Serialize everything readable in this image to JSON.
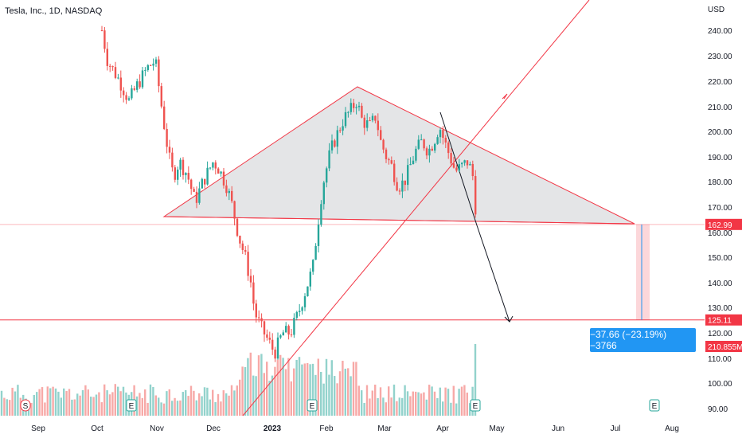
{
  "header": {
    "title": "Tesla, Inc., 1D, NASDAQ"
  },
  "chart_data": {
    "type": "candlestick",
    "currency_label": "USD",
    "y_ticks": [
      "240.00",
      "230.00",
      "220.00",
      "210.00",
      "200.00",
      "190.00",
      "180.00",
      "170.00",
      "160.00",
      "150.00",
      "140.00",
      "130.00",
      "120.00",
      "110.00",
      "100.00",
      "90.00"
    ],
    "x_ticks": [
      "Sep",
      "Oct",
      "Nov",
      "Dec",
      "2023",
      "Feb",
      "Mar",
      "Apr",
      "May",
      "Jun",
      "Jul",
      "Aug"
    ],
    "price_tags": [
      {
        "label": "162.99",
        "color": "#f23645"
      },
      {
        "label": "125.11",
        "color": "#f23645"
      },
      {
        "label": "210.855M",
        "color": "#f23645"
      }
    ],
    "measure_label": "−37.66 (−23.19%) −3766",
    "event_markers": [
      "S",
      "E",
      "E",
      "E",
      "E"
    ],
    "colors": {
      "up": "#26a69a",
      "down": "#ef5350",
      "drawing": "#f23645",
      "measure": "#2196f3"
    }
  }
}
